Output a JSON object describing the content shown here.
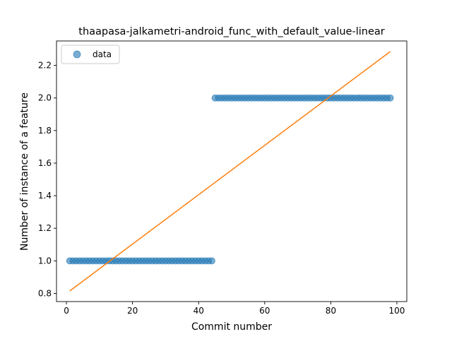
{
  "chart_data": {
    "type": "scatter",
    "title": "thaapasa-jalkametri-android_func_with_default_value-linear",
    "xlabel": "Commit number",
    "ylabel": "Number of instance of a feature",
    "xlim": [
      -3,
      103
    ],
    "ylim": [
      0.75,
      2.35
    ],
    "xticks": [
      0,
      20,
      40,
      60,
      80,
      100
    ],
    "yticks": [
      0.8,
      1.0,
      1.2,
      1.4,
      1.6,
      1.8,
      2.0,
      2.2
    ],
    "legend": {
      "position": "top-left",
      "entries": [
        "data"
      ]
    },
    "grid": false,
    "colors": {
      "data": "#1f77b4",
      "fit": "#ff7f0e"
    },
    "series": [
      {
        "name": "data",
        "kind": "scatter",
        "segments": [
          {
            "x_start": 1,
            "x_end": 44,
            "y": 1.0
          },
          {
            "x_start": 45,
            "x_end": 98,
            "y": 2.0
          }
        ]
      },
      {
        "kind": "line",
        "x": [
          1,
          98
        ],
        "y": [
          0.815,
          2.285
        ]
      }
    ]
  }
}
